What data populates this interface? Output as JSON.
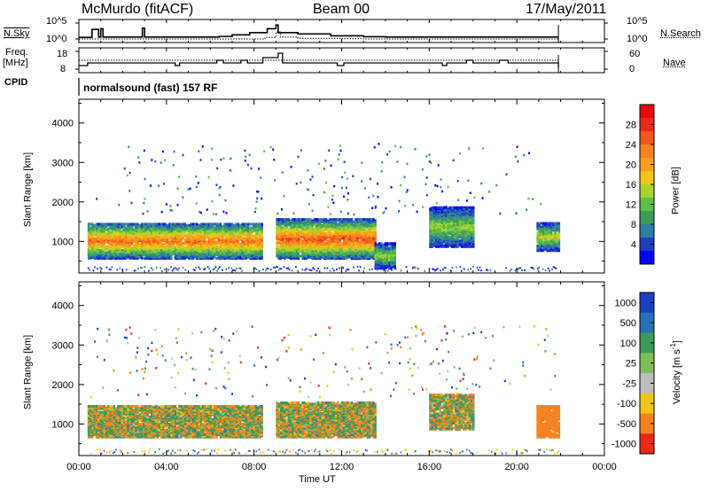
{
  "header": {
    "radar": "McMurdo (fitACF)",
    "beam": "Beam 00",
    "date": "17/May/2011"
  },
  "panel_labels": {
    "nsky": "N.Sky",
    "nsky_hi": "10^5",
    "nsky_lo": "10^0",
    "nsearch": "N.Search",
    "nsearch_hi": "10^5",
    "nsearch_lo": "10^0",
    "freq": "Freq.",
    "freq_unit": "[MHz]",
    "freq_hi": "18",
    "freq_lo": "8",
    "nave": "Nave",
    "nave_hi": "60",
    "nave_lo": "0",
    "cpid": "CPID",
    "cpid_text": "normalsound (fast) 157 RF"
  },
  "chart_data": [
    {
      "type": "heatmap",
      "name": "power",
      "ylabel": "Slant Range [km]",
      "ylim": [
        200,
        4600
      ],
      "yticks": [
        "1000",
        "2000",
        "3000",
        "4000"
      ],
      "xlabel": "Time UT",
      "xlim": [
        0,
        24
      ],
      "xticks": [
        "00:00",
        "04:00",
        "08:00",
        "12:00",
        "16:00",
        "20:00",
        "00:00"
      ],
      "colorbar": {
        "label": "Power [dB]",
        "ticks": [
          "4",
          "8",
          "12",
          "16",
          "20",
          "24",
          "28"
        ],
        "colors": [
          "#0000ff",
          "#1f3fbf",
          "#2e7fa0",
          "#3c9a5a",
          "#5bbf4b",
          "#a6d42d",
          "#f0c418",
          "#f59f1a",
          "#f5821f",
          "#f0591a",
          "#e8281a",
          "#e40a0a"
        ]
      },
      "echo_regions": [
        {
          "t_start": 0.4,
          "t_end": 8.4,
          "r_low": 600,
          "r_high": 1500,
          "level": 24
        },
        {
          "t_start": 9.0,
          "t_end": 13.5,
          "r_low": 600,
          "r_high": 1600,
          "level": 26
        },
        {
          "t_start": 13.5,
          "t_end": 14.4,
          "r_low": 350,
          "r_high": 1000,
          "level": 14
        },
        {
          "t_start": 16.0,
          "t_end": 18.0,
          "r_low": 900,
          "r_high": 1900,
          "level": 14
        },
        {
          "t_start": 20.9,
          "t_end": 21.9,
          "r_low": 800,
          "r_high": 1500,
          "level": 16
        }
      ]
    },
    {
      "type": "heatmap",
      "name": "velocity",
      "ylabel": "Slant Range [km]",
      "ylim": [
        200,
        4600
      ],
      "yticks": [
        "1000",
        "2000",
        "3000",
        "4000"
      ],
      "xlabel": "Time UT",
      "xlim": [
        0,
        24
      ],
      "xticks": [
        "00:00",
        "04:00",
        "08:00",
        "12:00",
        "16:00",
        "20:00",
        "00:00"
      ],
      "colorbar": {
        "label": "Velocity [m s^-1]",
        "label_main": "Velocity [m s",
        "label_exp": "-1",
        "label_end": "]",
        "ticks": [
          "1000",
          "500",
          "100",
          "25",
          "-25",
          "-100",
          "-500",
          "-1000"
        ],
        "colors": [
          "#1a3fbf",
          "#2a6fb8",
          "#3c9a5a",
          "#7fbf5a",
          "#bdbdbd",
          "#f0c418",
          "#f5821f",
          "#e8281a"
        ]
      },
      "echo_regions": [
        {
          "t_start": 0.4,
          "t_end": 8.4,
          "r_low": 700,
          "r_high": 1500,
          "level": 100
        },
        {
          "t_start": 9.0,
          "t_end": 13.5,
          "r_low": 700,
          "r_high": 1600,
          "level": 100
        },
        {
          "t_start": 16.0,
          "t_end": 18.0,
          "r_low": 900,
          "r_high": 1800,
          "level": 100
        },
        {
          "t_start": 20.9,
          "t_end": 21.9,
          "r_low": 700,
          "r_high": 1500,
          "level": -500
        }
      ]
    }
  ],
  "time_series": {
    "nsky_log": [
      [
        0.0,
        0.5
      ],
      [
        0.6,
        3.0
      ],
      [
        0.9,
        0.6
      ],
      [
        1.0,
        3.2
      ],
      [
        1.1,
        0.6
      ],
      [
        2.8,
        0.6
      ],
      [
        2.9,
        3.4
      ],
      [
        3.0,
        0.6
      ],
      [
        6.4,
        0.8
      ],
      [
        7.0,
        1.3
      ],
      [
        7.8,
        2.0
      ],
      [
        8.6,
        3.2
      ],
      [
        9.0,
        4.4
      ],
      [
        9.1,
        2.0
      ],
      [
        10.0,
        1.6
      ],
      [
        11.5,
        1.0
      ],
      [
        13.0,
        0.7
      ],
      [
        14.0,
        0.6
      ],
      [
        21.9,
        0.6
      ]
    ],
    "nsearch_log": [
      [
        0.0,
        0.0
      ],
      [
        6.0,
        0.0
      ],
      [
        8.5,
        0.5
      ],
      [
        9.0,
        2.2
      ],
      [
        9.2,
        0.6
      ],
      [
        10.0,
        0.2
      ],
      [
        12.0,
        0.1
      ],
      [
        13.0,
        0.0
      ],
      [
        21.9,
        0.0
      ]
    ],
    "freq_mhz": [
      [
        0.0,
        10.0
      ],
      [
        0.4,
        11.5
      ],
      [
        4.4,
        10.0
      ],
      [
        4.6,
        11.5
      ],
      [
        6.3,
        13.0
      ],
      [
        6.6,
        11.5
      ],
      [
        7.4,
        13.0
      ],
      [
        7.7,
        11.5
      ],
      [
        8.4,
        14.5
      ],
      [
        9.1,
        17.0
      ],
      [
        9.3,
        11.5
      ],
      [
        11.8,
        10.0
      ],
      [
        12.1,
        11.5
      ],
      [
        16.6,
        10.0
      ],
      [
        16.8,
        11.5
      ],
      [
        17.7,
        13.0
      ],
      [
        18.0,
        11.5
      ],
      [
        19.2,
        13.0
      ],
      [
        19.6,
        11.5
      ],
      [
        21.9,
        9.0
      ]
    ],
    "nave": [
      [
        0.0,
        30
      ],
      [
        21.9,
        30
      ]
    ]
  }
}
